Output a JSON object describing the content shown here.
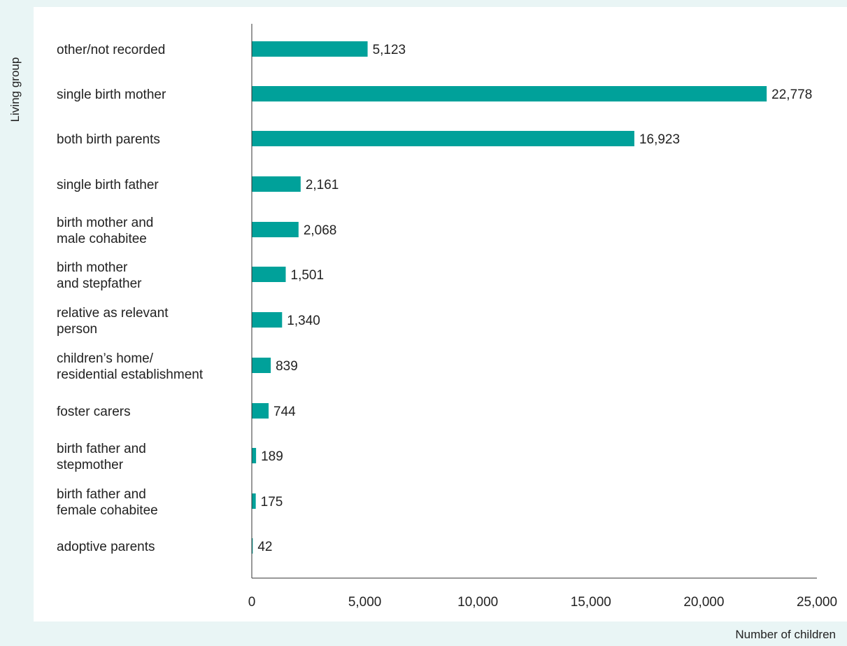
{
  "chart_data": {
    "type": "bar",
    "orientation": "horizontal",
    "title": "",
    "xlabel": "Number of children",
    "ylabel": "Living group",
    "xlim": [
      0,
      25000
    ],
    "xticks": [
      0,
      5000,
      10000,
      15000,
      20000,
      25000
    ],
    "xtick_labels": [
      "0",
      "5,000",
      "10,000",
      "15,000",
      "20,000",
      "25,000"
    ],
    "grid": false,
    "legend": "none",
    "bar_color": "#00a19a",
    "categories": [
      [
        "other/not recorded"
      ],
      [
        "single birth mother"
      ],
      [
        "both birth parents"
      ],
      [
        "single birth father"
      ],
      [
        "birth mother and",
        "male cohabitee"
      ],
      [
        "birth mother",
        "and stepfather"
      ],
      [
        "relative as relevant",
        "person"
      ],
      [
        "children’s home/",
        "residential establishment"
      ],
      [
        "foster carers"
      ],
      [
        "birth father and",
        "stepmother"
      ],
      [
        "birth father and",
        "female cohabitee"
      ],
      [
        "adoptive parents"
      ]
    ],
    "values": [
      5123,
      22778,
      16923,
      2161,
      2068,
      1501,
      1340,
      839,
      744,
      189,
      175,
      42
    ],
    "value_labels": [
      "5,123",
      "22,778",
      "16,923",
      "2,161",
      "2,068",
      "1,501",
      "1,340",
      "839",
      "744",
      "189",
      "175",
      "42"
    ]
  }
}
